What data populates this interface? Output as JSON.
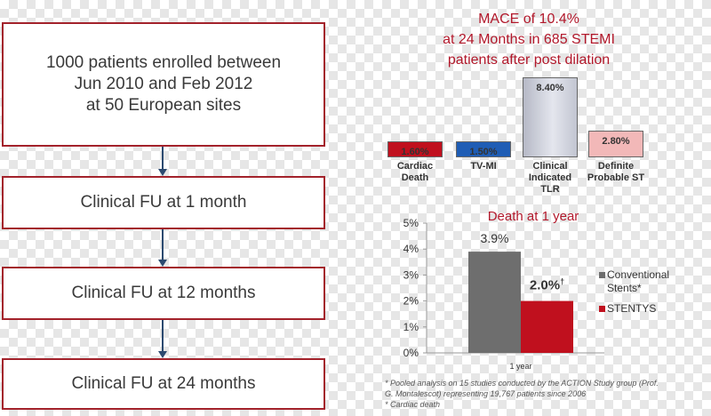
{
  "flow": {
    "boxes": [
      "1000 patients enrolled between\nJun 2010 and Feb 2012\nat 50 European sites",
      "Clinical FU at 1 month",
      "Clinical FU at 12 months",
      "Clinical FU at 24 months"
    ]
  },
  "mace": {
    "title_lines": [
      "MACE of 10.4%",
      "at 24 Months in 685 STEMI",
      "patients after post dilation"
    ]
  },
  "chart_data": [
    {
      "type": "bar",
      "categories": [
        "Cardiac\nDeath",
        "TV-MI",
        "Clinical\nIndicated\nTLR",
        "Definite\nProbable ST"
      ],
      "values": [
        1.6,
        1.5,
        8.4,
        2.8
      ],
      "labels": [
        "1.60%",
        "1.50%",
        "8.40%",
        "2.80%"
      ],
      "colors": [
        "#c0101e",
        "#1f5db5",
        "#c7cad6",
        "#f2b8b8"
      ],
      "ylim": [
        0,
        8.4
      ],
      "grid": false,
      "title": ""
    },
    {
      "type": "bar",
      "title": "Death at 1 year",
      "categories": [
        "1 year"
      ],
      "series": [
        {
          "name": "Conventional\nStents*",
          "values": [
            3.9
          ],
          "label": "3.9%",
          "color": "#6e6e6e"
        },
        {
          "name": "STENTYS",
          "values": [
            2.0
          ],
          "label": "2.0%",
          "label_sup": "†",
          "color": "#c0101e"
        }
      ],
      "yticks": [
        "0%",
        "1%",
        "2%",
        "3%",
        "4%",
        "5%"
      ],
      "ylim": [
        0,
        5
      ],
      "xlabel": "",
      "ylabel": "",
      "legend": "right",
      "grid": false
    }
  ],
  "footnotes": [
    "* Pooled analysis on 15 studies conducted by the ACTION Study group (Prof.\nG. Montalescot) representing 19,767 patients since 2006",
    "* Cardiac death"
  ]
}
